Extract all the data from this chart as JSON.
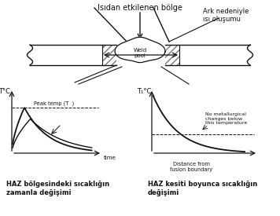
{
  "title_haz": "Isıdan etkilenen bölge",
  "title_ark": "Ark nedeniyle\nısı oluşumu",
  "label_weld": "Weld\npool",
  "label_left_ylabel": "T°C",
  "label_left_xlabel": "time",
  "label_left_peak": "Peak temp (T  )",
  "label_right_ylabel": "T₁°C",
  "label_right_xlabel": "Distance from\nfusion boundary",
  "label_right_no_met": "No metallurgical\nchanges below\nthis temperature",
  "label_bottom_left": "HAZ bölgesindeki sıcaklığın\nzamanla değişimi",
  "label_bottom_right": "HAZ kesiti boyunca sıcaklığın\ndeğişimi",
  "lc": "#111111",
  "tc": "#111111"
}
